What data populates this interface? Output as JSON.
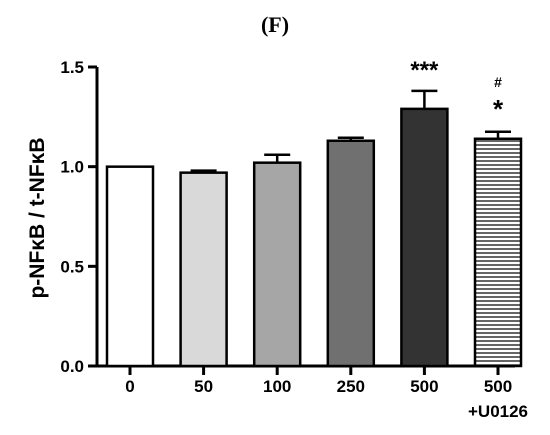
{
  "chart_data": {
    "type": "bar",
    "panel_label": "(F)",
    "ylabel": "p-NFκB / t-NFκB",
    "xlabel": "",
    "ylim": [
      0,
      1.5
    ],
    "yticks": [
      0.0,
      0.5,
      1.0,
      1.5
    ],
    "ytick_labels": [
      "0.0",
      "0.5",
      "1.0",
      "1.5"
    ],
    "categories": [
      "0",
      "50",
      "100",
      "250",
      "500",
      "500\n+U0126"
    ],
    "values": [
      1.0,
      0.97,
      1.02,
      1.13,
      1.29,
      1.14
    ],
    "errors": [
      0.0,
      0.01,
      0.04,
      0.015,
      0.09,
      0.035
    ],
    "fills": [
      "#ffffff",
      "#d9d9d9",
      "#a6a6a6",
      "#707070",
      "#333333",
      "hatch"
    ],
    "annotations": [
      {
        "index": 4,
        "lines": [
          "***"
        ]
      },
      {
        "index": 5,
        "lines": [
          "#",
          "*"
        ]
      }
    ],
    "grid": false,
    "legend": "none"
  }
}
